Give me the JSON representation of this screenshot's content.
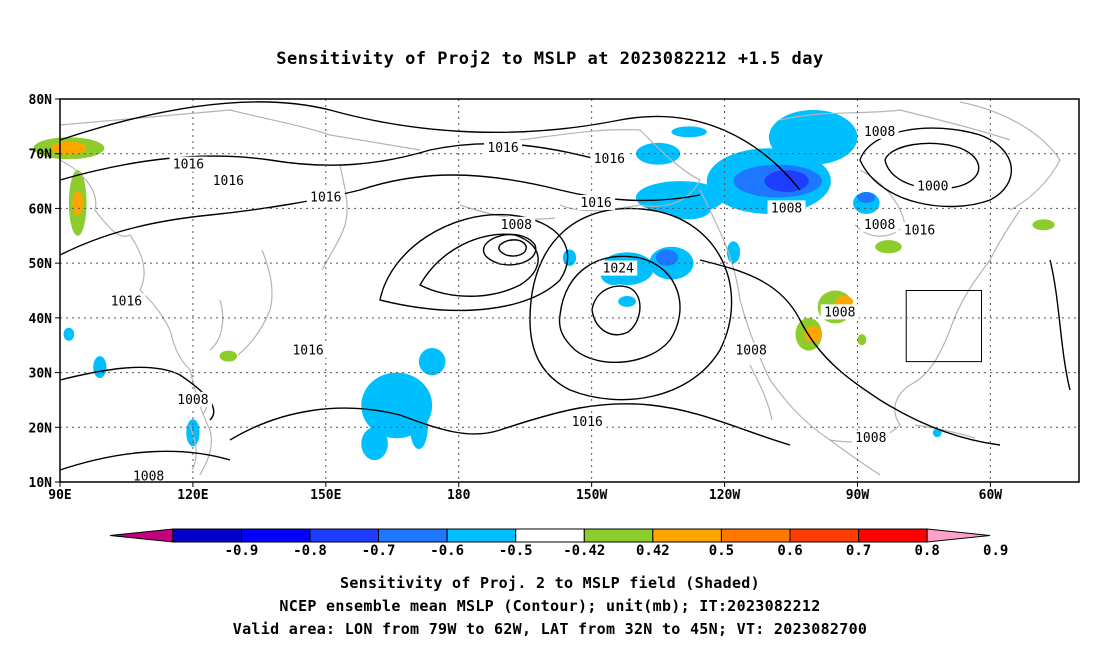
{
  "title": "Sensitivity of Proj2 to MSLP at 2023082212 +1.5 day",
  "axes": {
    "lat_labels": [
      "80N",
      "70N",
      "60N",
      "50N",
      "40N",
      "30N",
      "20N",
      "10N"
    ],
    "lon_labels": [
      "90E",
      "120E",
      "150E",
      "180",
      "150W",
      "120W",
      "90W",
      "60W"
    ]
  },
  "isobar_labels": [
    {
      "text": "1016",
      "lon": 119,
      "lat": 68
    },
    {
      "text": "1016",
      "lon": 128,
      "lat": 65
    },
    {
      "text": "1016",
      "lon": 150,
      "lat": 62
    },
    {
      "text": "1016",
      "lon": -170,
      "lat": 71
    },
    {
      "text": "1016",
      "lon": -146,
      "lat": 69
    },
    {
      "text": "1016",
      "lon": -149,
      "lat": 61
    },
    {
      "text": "1008",
      "lon": -167,
      "lat": 57
    },
    {
      "text": "1024",
      "lon": -144,
      "lat": 49
    },
    {
      "text": "1016",
      "lon": 105,
      "lat": 43
    },
    {
      "text": "1016",
      "lon": 146,
      "lat": 34
    },
    {
      "text": "1008",
      "lon": -106,
      "lat": 60
    },
    {
      "text": "1008",
      "lon": -85,
      "lat": 74
    },
    {
      "text": "1000",
      "lon": -73,
      "lat": 64
    },
    {
      "text": "1008",
      "lon": -85,
      "lat": 57
    },
    {
      "text": "1016",
      "lon": -76,
      "lat": 56
    },
    {
      "text": "1008",
      "lon": -94,
      "lat": 41
    },
    {
      "text": "1008",
      "lon": -114,
      "lat": 34
    },
    {
      "text": "1016",
      "lon": -151,
      "lat": 21
    },
    {
      "text": "1008",
      "lon": 120,
      "lat": 25
    },
    {
      "text": "1008",
      "lon": -87,
      "lat": 18
    },
    {
      "text": "1008",
      "lon": 110,
      "lat": 11
    }
  ],
  "colorbar": {
    "labels": [
      "-0.9",
      "-0.8",
      "-0.7",
      "-0.6",
      "-0.5",
      "-0.42",
      "0.42",
      "0.5",
      "0.6",
      "0.7",
      "0.8",
      "0.9"
    ],
    "colors": [
      "#c4007f",
      "#0000c6",
      "#0000ff",
      "#1f3dff",
      "#1e78ff",
      "#00bfff",
      "#ffffff",
      "#8ccc2d",
      "#ffa500",
      "#ff7800",
      "#ff3c00",
      "#ff0000",
      "#ffa0c8"
    ]
  },
  "captions": [
    "Sensitivity of Proj. 2 to MSLP field (Shaded)",
    "NCEP ensemble mean MSLP (Contour); unit(mb); IT:2023082212",
    "Valid area: LON from 79W to 62W, LAT from 32N to 45N; VT: 2023082700"
  ],
  "valid_area": {
    "lon_min": -79,
    "lon_max": -62,
    "lat_min": 32,
    "lat_max": 45
  },
  "shading": [
    {
      "level": 0.5,
      "lon": 92,
      "lat": 71,
      "rlon": 8,
      "rlat": 2
    },
    {
      "level": 0.6,
      "lon": 92,
      "lat": 71,
      "rlon": 4,
      "rlat": 1.2
    },
    {
      "level": 0.5,
      "lon": 94,
      "lat": 61,
      "rlon": 2,
      "rlat": 6
    },
    {
      "level": 0.6,
      "lon": 94,
      "lat": 61,
      "rlon": 1.2,
      "rlat": 2.2
    },
    {
      "level": 0.5,
      "lon": 128,
      "lat": 33,
      "rlon": 2,
      "rlat": 1
    },
    {
      "level": -0.5,
      "lon": 92,
      "lat": 37,
      "rlon": 1.2,
      "rlat": 1.2
    },
    {
      "level": -0.5,
      "lon": 99,
      "lat": 31,
      "rlon": 1.5,
      "rlat": 2
    },
    {
      "level": -0.5,
      "lon": 120,
      "lat": 19,
      "rlon": 1.5,
      "rlat": 2.5
    },
    {
      "level": -0.42,
      "lon": 166,
      "lat": 24,
      "rlon": 8,
      "rlat": 6
    },
    {
      "level": -0.5,
      "lon": 165,
      "lat": 24,
      "rlon": 4,
      "rlat": 3
    },
    {
      "level": -0.42,
      "lon": 174,
      "lat": 32,
      "rlon": 3,
      "rlat": 2.5
    },
    {
      "level": -0.42,
      "lon": 171,
      "lat": 20,
      "rlon": 2,
      "rlat": 4
    },
    {
      "level": -0.42,
      "lon": 161,
      "lat": 17,
      "rlon": 3,
      "rlat": 3
    },
    {
      "level": -0.42,
      "lon": -135,
      "lat": 70,
      "rlon": 5,
      "rlat": 2
    },
    {
      "level": -0.42,
      "lon": -128,
      "lat": 74,
      "rlon": 4,
      "rlat": 1
    },
    {
      "level": -0.42,
      "lon": -110,
      "lat": 65,
      "rlon": 14,
      "rlat": 6
    },
    {
      "level": -0.6,
      "lon": -108,
      "lat": 65,
      "rlon": 10,
      "rlat": 3
    },
    {
      "level": -0.7,
      "lon": -106,
      "lat": 65,
      "rlon": 5,
      "rlat": 2
    },
    {
      "level": -0.42,
      "lon": -100,
      "lat": 73,
      "rlon": 10,
      "rlat": 5
    },
    {
      "level": -0.42,
      "lon": -130,
      "lat": 62,
      "rlon": 10,
      "rlat": 3
    },
    {
      "level": -0.5,
      "lon": -128,
      "lat": 60,
      "rlon": 5,
      "rlat": 2
    },
    {
      "level": -0.42,
      "lon": -142,
      "lat": 49,
      "rlon": 6,
      "rlat": 3
    },
    {
      "level": -0.5,
      "lon": -145,
      "lat": 48,
      "rlon": 3,
      "rlat": 2
    },
    {
      "level": -0.42,
      "lon": -132,
      "lat": 50,
      "rlon": 5,
      "rlat": 3
    },
    {
      "level": -0.6,
      "lon": -133,
      "lat": 51,
      "rlon": 2.5,
      "rlat": 1.5
    },
    {
      "level": -0.42,
      "lon": -155,
      "lat": 51,
      "rlon": 1.5,
      "rlat": 1.5
    },
    {
      "level": -0.42,
      "lon": -142,
      "lat": 43,
      "rlon": 2,
      "rlat": 1
    },
    {
      "level": -0.42,
      "lon": -118,
      "lat": 52,
      "rlon": 1.5,
      "rlat": 2
    },
    {
      "level": -0.42,
      "lon": -88,
      "lat": 61,
      "rlon": 3,
      "rlat": 2
    },
    {
      "level": -0.6,
      "lon": -88,
      "lat": 62,
      "rlon": 2,
      "rlat": 1
    },
    {
      "level": 0.5,
      "lon": -83,
      "lat": 53,
      "rlon": 3,
      "rlat": 1.2
    },
    {
      "level": 0.5,
      "lon": -95,
      "lat": 42,
      "rlon": 4,
      "rlat": 3
    },
    {
      "level": 0.6,
      "lon": -93,
      "lat": 43,
      "rlon": 2,
      "rlat": 1
    },
    {
      "level": 0.5,
      "lon": -101,
      "lat": 37,
      "rlon": 3,
      "rlat": 3
    },
    {
      "level": 0.6,
      "lon": -100,
      "lat": 37,
      "rlon": 2,
      "rlat": 1.5
    },
    {
      "level": 0.5,
      "lon": -89,
      "lat": 36,
      "rlon": 1,
      "rlat": 1
    },
    {
      "level": 0.5,
      "lon": -77,
      "lat": 56,
      "rlon": 2,
      "rlat": 1
    },
    {
      "level": 0.5,
      "lon": -48,
      "lat": 57,
      "rlon": 2.5,
      "rlat": 1
    },
    {
      "level": -0.42,
      "lon": -72,
      "lat": 19,
      "rlon": 1,
      "rlat": 0.8
    }
  ]
}
